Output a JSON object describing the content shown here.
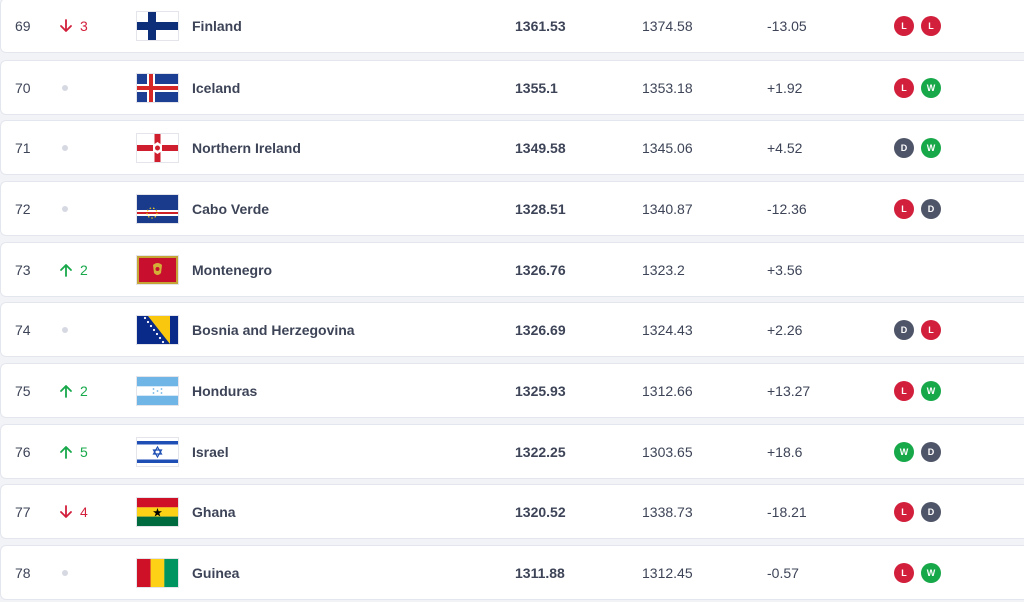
{
  "colors": {
    "up": "#17a84a",
    "down": "#d21f3c",
    "win": "#17a84a",
    "loss": "#d21f3c",
    "draw": "#4f5568"
  },
  "rows": [
    {
      "rank": "69",
      "move_dir": "down",
      "move_val": "3",
      "team": "Finland",
      "flag": "finland-flag",
      "points": "1361.53",
      "previous": "1374.58",
      "diff": "-13.05",
      "form": [
        "L",
        "L"
      ]
    },
    {
      "rank": "70",
      "move_dir": "none",
      "move_val": "",
      "team": "Iceland",
      "flag": "iceland-flag",
      "points": "1355.1",
      "previous": "1353.18",
      "diff": "+1.92",
      "form": [
        "L",
        "W"
      ]
    },
    {
      "rank": "71",
      "move_dir": "none",
      "move_val": "",
      "team": "Northern Ireland",
      "flag": "northern-ireland-flag",
      "points": "1349.58",
      "previous": "1345.06",
      "diff": "+4.52",
      "form": [
        "D",
        "W"
      ]
    },
    {
      "rank": "72",
      "move_dir": "none",
      "move_val": "",
      "team": "Cabo Verde",
      "flag": "cabo-verde-flag",
      "points": "1328.51",
      "previous": "1340.87",
      "diff": "-12.36",
      "form": [
        "L",
        "D"
      ]
    },
    {
      "rank": "73",
      "move_dir": "up",
      "move_val": "2",
      "team": "Montenegro",
      "flag": "montenegro-flag",
      "points": "1326.76",
      "previous": "1323.2",
      "diff": "+3.56",
      "form": []
    },
    {
      "rank": "74",
      "move_dir": "none",
      "move_val": "",
      "team": "Bosnia and Herzegovina",
      "flag": "bosnia-flag",
      "points": "1326.69",
      "previous": "1324.43",
      "diff": "+2.26",
      "form": [
        "D",
        "L"
      ]
    },
    {
      "rank": "75",
      "move_dir": "up",
      "move_val": "2",
      "team": "Honduras",
      "flag": "honduras-flag",
      "points": "1325.93",
      "previous": "1312.66",
      "diff": "+13.27",
      "form": [
        "L",
        "W"
      ]
    },
    {
      "rank": "76",
      "move_dir": "up",
      "move_val": "5",
      "team": "Israel",
      "flag": "israel-flag",
      "points": "1322.25",
      "previous": "1303.65",
      "diff": "+18.6",
      "form": [
        "W",
        "D"
      ]
    },
    {
      "rank": "77",
      "move_dir": "down",
      "move_val": "4",
      "team": "Ghana",
      "flag": "ghana-flag",
      "points": "1320.52",
      "previous": "1338.73",
      "diff": "-18.21",
      "form": [
        "L",
        "D"
      ]
    },
    {
      "rank": "78",
      "move_dir": "none",
      "move_val": "",
      "team": "Guinea",
      "flag": "guinea-flag",
      "points": "1311.88",
      "previous": "1312.45",
      "diff": "-0.57",
      "form": [
        "L",
        "W"
      ]
    }
  ]
}
